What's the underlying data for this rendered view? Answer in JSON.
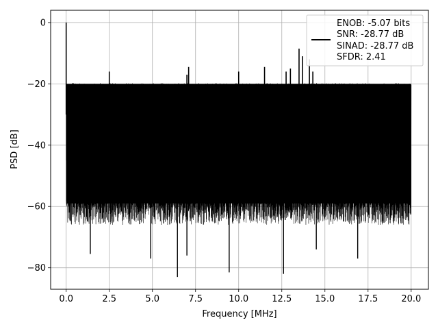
{
  "chart_data": {
    "type": "line",
    "title": "",
    "xlabel": "Frequency [MHz]",
    "ylabel": "PSD [dB]",
    "xlim": [
      -0.9,
      21.0
    ],
    "ylim": [
      -87,
      4
    ],
    "xticks": [
      0.0,
      2.5,
      5.0,
      7.5,
      10.0,
      12.5,
      15.0,
      17.5,
      20.0
    ],
    "xtick_labels": [
      "0.0",
      "2.5",
      "5.0",
      "7.5",
      "10.0",
      "12.5",
      "15.0",
      "17.5",
      "20.0"
    ],
    "yticks": [
      0,
      -20,
      -40,
      -60,
      -80
    ],
    "ytick_labels": [
      "0",
      "−20",
      "−40",
      "−60",
      "−80"
    ],
    "grid": true,
    "legend_position": "top-right",
    "series": [
      {
        "color": "#000000",
        "noise_floor_top_db": -21,
        "noise_floor_bottom_db": -62,
        "x_range": [
          0,
          20
        ],
        "peaks": [
          {
            "x": 0.0,
            "y": 0.0
          },
          {
            "x": 2.5,
            "y": -16
          },
          {
            "x": 7.0,
            "y": -17
          },
          {
            "x": 7.1,
            "y": -14.5
          },
          {
            "x": 10.0,
            "y": -16
          },
          {
            "x": 11.5,
            "y": -14.5
          },
          {
            "x": 12.75,
            "y": -16
          },
          {
            "x": 13.0,
            "y": -15
          },
          {
            "x": 13.5,
            "y": -8.5
          },
          {
            "x": 13.7,
            "y": -11
          },
          {
            "x": 14.1,
            "y": -12
          },
          {
            "x": 14.3,
            "y": -16
          }
        ],
        "dips": [
          {
            "x": 1.4,
            "y": -75.5
          },
          {
            "x": 4.9,
            "y": -77
          },
          {
            "x": 6.45,
            "y": -83
          },
          {
            "x": 7.0,
            "y": -76
          },
          {
            "x": 9.45,
            "y": -81.5
          },
          {
            "x": 12.6,
            "y": -82
          },
          {
            "x": 14.5,
            "y": -74
          },
          {
            "x": 16.9,
            "y": -77
          }
        ]
      }
    ],
    "legend": {
      "lines": [
        "ENOB: -5.07 bits",
        "SNR: -28.77 dB",
        "SINAD: -28.77 dB",
        "SFDR: 2.41"
      ]
    }
  }
}
